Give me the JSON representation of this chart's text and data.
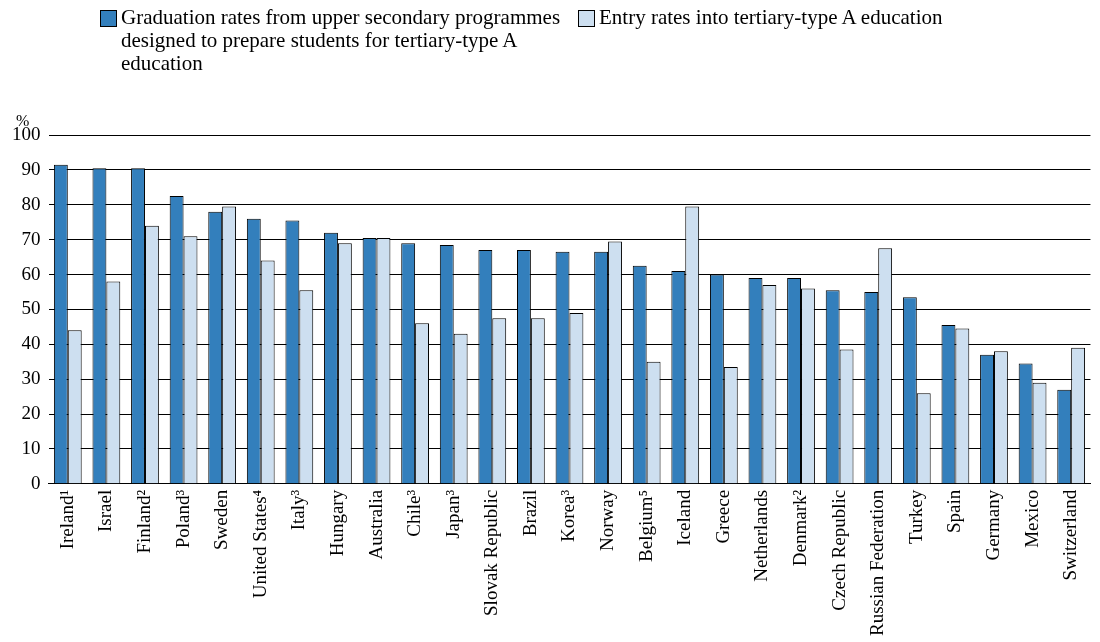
{
  "chart_data": {
    "type": "bar",
    "ylabel": "%",
    "categories": [
      "Ireland¹",
      "Israel",
      "Finland²",
      "Poland³",
      "Sweden",
      "United States⁴",
      "Italy³",
      "Hungary",
      "Australia",
      "Chile³",
      "Japan³",
      "Slovak Republic",
      "Brazil",
      "Korea³",
      "Norway",
      "Belgium⁵",
      "Iceland",
      "Greece",
      "Netherlands",
      "Denmark²",
      "Czech Republic",
      "Russian Federation",
      "Turkey",
      "Spain",
      "Germany",
      "Mexico",
      "Switzerland"
    ],
    "series": [
      {
        "name": "Graduation rates from upper secondary programmes designed to prepare students for tertiary-type A education",
        "color": "#337fbc",
        "values": [
          91.5,
          90.5,
          90.5,
          82.5,
          78,
          76,
          75.5,
          72,
          70.5,
          69,
          68.5,
          67,
          67,
          66.5,
          66.5,
          62.5,
          61,
          60,
          59,
          59,
          55.5,
          55,
          53.5,
          45.5,
          37,
          34.5,
          27
        ]
      },
      {
        "name": "Entry rates into tertiary-type A education",
        "color": "#cddff0",
        "values": [
          44,
          58,
          74,
          71,
          79.5,
          64,
          55.5,
          69,
          70.5,
          46,
          43,
          47.5,
          47.5,
          49,
          69.5,
          35,
          79.5,
          33.5,
          57,
          56,
          38.5,
          67.5,
          26,
          44.5,
          38,
          29,
          39
        ]
      }
    ],
    "ylim": [
      0,
      100
    ],
    "yticks": [
      0,
      10,
      20,
      30,
      40,
      50,
      60,
      70,
      80,
      90,
      100
    ],
    "grid": "y",
    "legend": "top"
  }
}
